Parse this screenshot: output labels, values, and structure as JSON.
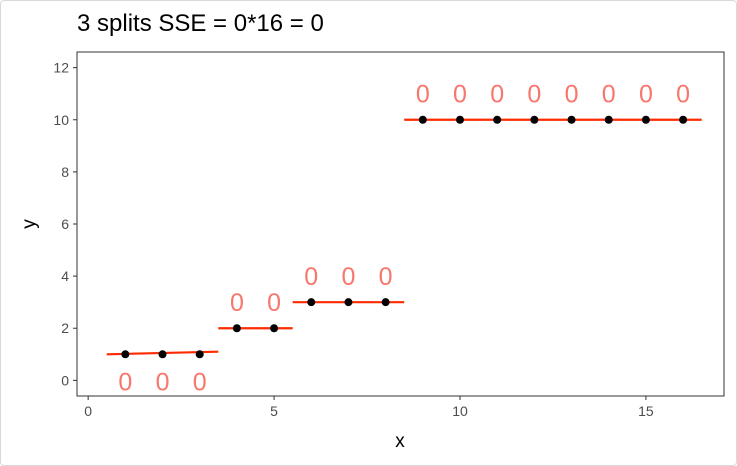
{
  "chart_data": {
    "type": "scatter",
    "title": "3 splits SSE = 0*16 = 0",
    "xlabel": "x",
    "ylabel": "y",
    "xlim": [
      -0.3,
      17.1
    ],
    "ylim": [
      -0.6,
      12.6
    ],
    "x_ticks": [
      0,
      5,
      10,
      15
    ],
    "y_ticks": [
      0,
      2,
      4,
      6,
      8,
      10,
      12
    ],
    "grid": false,
    "points": {
      "x": [
        1,
        2,
        3,
        4,
        5,
        6,
        7,
        8,
        9,
        10,
        11,
        12,
        13,
        14,
        15,
        16
      ],
      "y": [
        1,
        1,
        1,
        2,
        2,
        3,
        3,
        3,
        10,
        10,
        10,
        10,
        10,
        10,
        10,
        10
      ],
      "color": "#000000"
    },
    "fit_segments": [
      {
        "x": [
          0.5,
          3.5
        ],
        "y": [
          1,
          1.1
        ]
      },
      {
        "x": [
          3.5,
          5.5
        ],
        "y": [
          2,
          2
        ]
      },
      {
        "x": [
          5.5,
          8.5
        ],
        "y": [
          3,
          3
        ]
      },
      {
        "x": [
          8.5,
          16.5
        ],
        "y": [
          10,
          10
        ]
      }
    ],
    "fit_color": "#ff2a00",
    "residual_labels": [
      {
        "x": 1,
        "y": -0.05,
        "text": "0"
      },
      {
        "x": 2,
        "y": -0.05,
        "text": "0"
      },
      {
        "x": 3,
        "y": -0.05,
        "text": "0"
      },
      {
        "x": 4,
        "y": 3.0,
        "text": "0"
      },
      {
        "x": 5,
        "y": 3.0,
        "text": "0"
      },
      {
        "x": 6,
        "y": 4.0,
        "text": "0"
      },
      {
        "x": 7,
        "y": 4.0,
        "text": "0"
      },
      {
        "x": 8,
        "y": 4.0,
        "text": "0"
      },
      {
        "x": 9,
        "y": 11.0,
        "text": "0"
      },
      {
        "x": 10,
        "y": 11.0,
        "text": "0"
      },
      {
        "x": 11,
        "y": 11.0,
        "text": "0"
      },
      {
        "x": 12,
        "y": 11.0,
        "text": "0"
      },
      {
        "x": 13,
        "y": 11.0,
        "text": "0"
      },
      {
        "x": 14,
        "y": 11.0,
        "text": "0"
      },
      {
        "x": 15,
        "y": 11.0,
        "text": "0"
      },
      {
        "x": 16,
        "y": 11.0,
        "text": "0"
      }
    ],
    "label_color": "#f8766d"
  }
}
